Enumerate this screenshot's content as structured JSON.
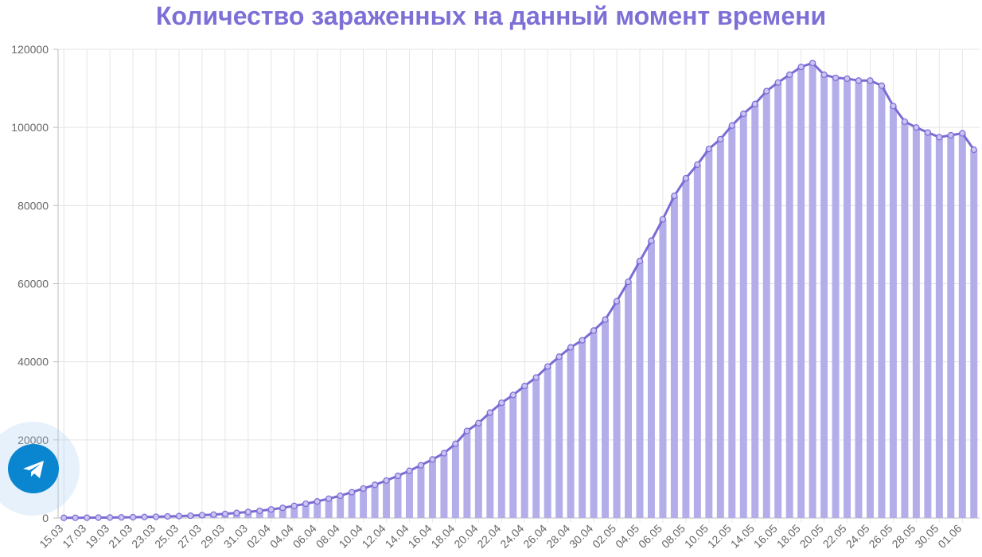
{
  "chart_data": {
    "type": "bar",
    "title": "Количество зараженных на данный момент времени",
    "ylim": [
      0,
      120000
    ],
    "yticks": [
      0,
      20000,
      40000,
      60000,
      80000,
      100000,
      120000
    ],
    "grid": true,
    "colors": {
      "bar": "#b3aeea",
      "line": "#7b6cd4",
      "title": "#7c6fd6"
    },
    "categories": [
      "15.03",
      "16.03",
      "17.03",
      "18.03",
      "19.03",
      "20.03",
      "21.03",
      "22.03",
      "23.03",
      "24.03",
      "25.03",
      "26.03",
      "27.03",
      "28.03",
      "29.03",
      "30.03",
      "31.03",
      "01.04",
      "02.04",
      "03.04",
      "04.04",
      "05.04",
      "06.04",
      "07.04",
      "08.04",
      "09.04",
      "10.04",
      "11.04",
      "12.04",
      "13.04",
      "14.04",
      "15.04",
      "16.04",
      "17.04",
      "18.04",
      "19.04",
      "20.04",
      "21.04",
      "22.04",
      "23.04",
      "24.04",
      "25.04",
      "26.04",
      "27.04",
      "28.04",
      "29.04",
      "30.04",
      "01.05",
      "02.05",
      "03.05",
      "04.05",
      "05.05",
      "06.05",
      "07.05",
      "08.05",
      "09.05",
      "10.05",
      "11.05",
      "12.05",
      "13.05",
      "14.05",
      "15.05",
      "16.05",
      "17.05",
      "18.05",
      "19.05",
      "20.05",
      "21.05",
      "22.05",
      "23.05",
      "24.05",
      "25.05",
      "26.05",
      "27.05",
      "28.05",
      "29.05",
      "30.05",
      "31.05",
      "01.06",
      "02.06"
    ],
    "labeled_categories": [
      "15.03",
      "17.03",
      "19.03",
      "21.03",
      "23.03",
      "25.03",
      "27.03",
      "29.03",
      "31.03",
      "02.04",
      "04.04",
      "06.04",
      "08.04",
      "10.04",
      "12.04",
      "14.04",
      "16.04",
      "18.04",
      "20.04",
      "22.04",
      "24.04",
      "26.04",
      "28.04",
      "30.04",
      "02.05",
      "04.05",
      "06.05",
      "08.05",
      "10.05",
      "12.05",
      "14.05",
      "16.05",
      "18.05",
      "20.05",
      "22.05",
      "24.05",
      "26.05",
      "28.05",
      "30.05",
      "01.06"
    ],
    "values": [
      50,
      60,
      80,
      100,
      130,
      170,
      210,
      260,
      320,
      400,
      490,
      600,
      730,
      880,
      1050,
      1300,
      1550,
      1850,
      2200,
      2600,
      3100,
      3650,
      4250,
      4950,
      5700,
      6600,
      7550,
      8500,
      9600,
      10800,
      12100,
      13500,
      15000,
      16600,
      19000,
      22300,
      24300,
      27000,
      29500,
      31500,
      33800,
      36000,
      38800,
      41300,
      43700,
      45500,
      48000,
      50800,
      55500,
      60500,
      65800,
      71000,
      76500,
      82500,
      87000,
      90500,
      94500,
      97000,
      100500,
      103500,
      106000,
      109300,
      111500,
      113500,
      115500,
      116500,
      113500,
      112700,
      112500,
      112000,
      112000,
      110700,
      105500,
      101500,
      100000,
      98700,
      97500,
      98000,
      98500,
      94300
    ]
  }
}
